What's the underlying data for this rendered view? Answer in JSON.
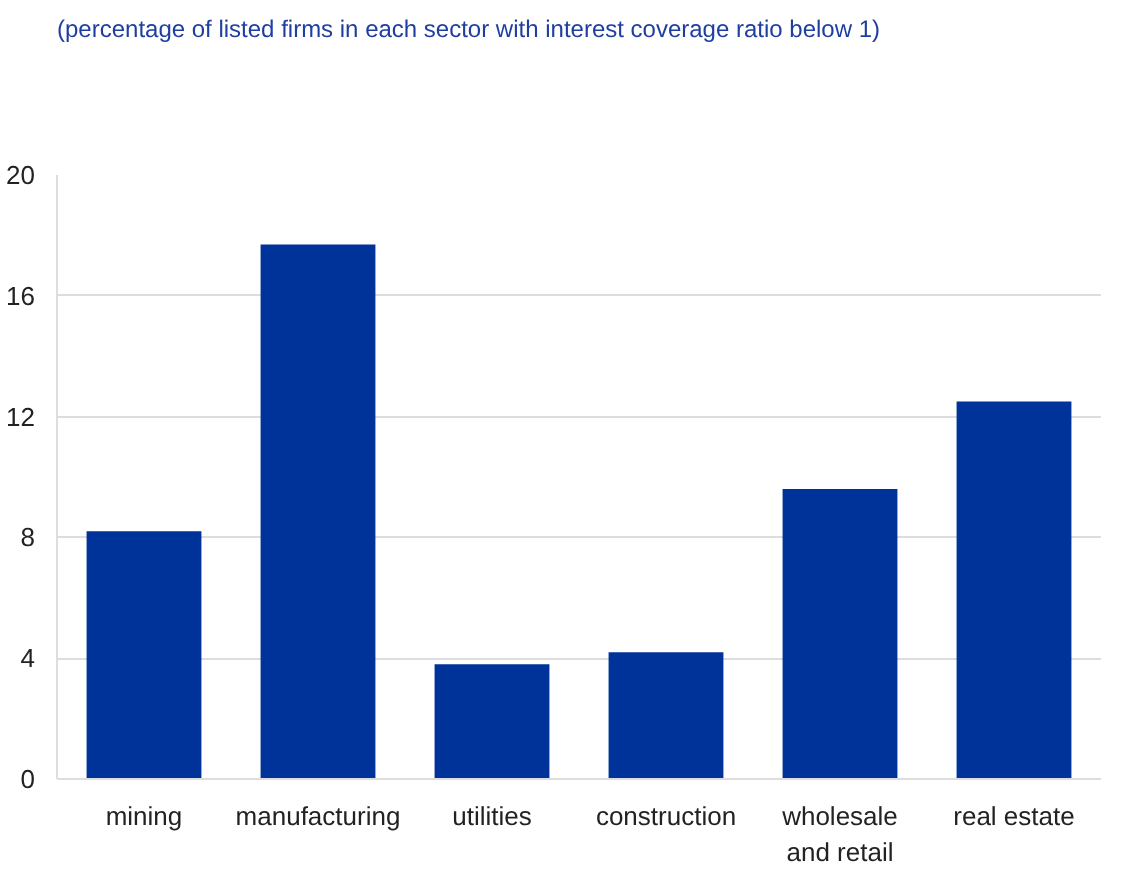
{
  "chart_data": {
    "type": "bar",
    "title": "(percentage of listed firms in each sector with interest coverage ratio below 1)",
    "categories": [
      "mining",
      "manufacturing",
      "utilities",
      "construction",
      "wholesale\nand retail",
      "real estate"
    ],
    "values": [
      8.2,
      17.7,
      3.8,
      4.2,
      9.6,
      12.5
    ],
    "color": "#003399",
    "ylim": [
      0,
      20
    ],
    "yticks": [
      0,
      4,
      8,
      12,
      16,
      20
    ],
    "grid": "y"
  }
}
